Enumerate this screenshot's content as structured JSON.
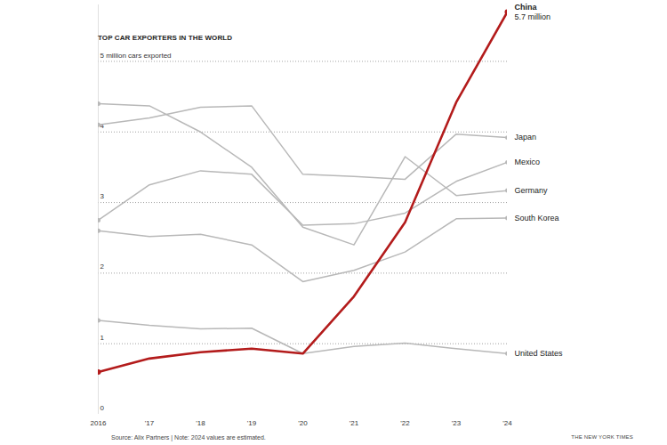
{
  "chart_data": {
    "type": "line",
    "title": "TOP CAR EXPORTERS IN THE WORLD",
    "source": "Source: Alix Partners | Note: 2024 values are estimated.",
    "credit": "THE NEW YORK TIMES",
    "x": [
      2016,
      2017,
      2018,
      2019,
      2020,
      2021,
      2022,
      2023,
      2024
    ],
    "xlim": [
      2016,
      2024
    ],
    "xticks": [
      {
        "value": 2016,
        "label": "2016"
      },
      {
        "value": 2017,
        "label": "'17"
      },
      {
        "value": 2018,
        "label": "'18"
      },
      {
        "value": 2019,
        "label": "'19"
      },
      {
        "value": 2020,
        "label": "'20"
      },
      {
        "value": 2021,
        "label": "'21"
      },
      {
        "value": 2022,
        "label": "'22"
      },
      {
        "value": 2023,
        "label": "'23"
      },
      {
        "value": 2024,
        "label": "'24"
      }
    ],
    "ylim": [
      0,
      5.8
    ],
    "yticks": [
      0,
      1,
      2,
      3,
      4,
      {
        "value": 5,
        "label": "5 million cars exported"
      }
    ],
    "grid": true,
    "marker": "circle",
    "series": [
      {
        "name": "China",
        "color": "#b31b1b",
        "line_style": "thick",
        "values": [
          0.6,
          0.79,
          0.88,
          0.93,
          0.86,
          1.67,
          2.72,
          4.42,
          5.7
        ],
        "value_labels": [
          null,
          null,
          null,
          null,
          null,
          null,
          null,
          null,
          "5.7 million"
        ]
      },
      {
        "name": "Japan",
        "color": "#b8b8b8",
        "line_style": "solid",
        "values": [
          4.1,
          4.2,
          4.35,
          4.37,
          3.4,
          3.37,
          3.33,
          3.97,
          3.92
        ]
      },
      {
        "name": "Mexico",
        "color": "#b8b8b8",
        "line_style": "solid",
        "values": [
          2.75,
          3.25,
          3.45,
          3.4,
          2.68,
          2.7,
          2.85,
          3.3,
          3.57
        ]
      },
      {
        "name": "Germany",
        "color": "#b8b8b8",
        "line_style": "solid",
        "values": [
          4.4,
          4.37,
          4.0,
          3.5,
          2.65,
          2.4,
          3.65,
          3.1,
          3.17
        ]
      },
      {
        "name": "South Korea",
        "color": "#b8b8b8",
        "line_style": "solid",
        "values": [
          2.6,
          2.52,
          2.55,
          2.4,
          1.88,
          2.04,
          2.3,
          2.77,
          2.78
        ]
      },
      {
        "name": "United States",
        "color": "#b8b8b8",
        "line_style": "solid",
        "values": [
          1.33,
          1.26,
          1.21,
          1.22,
          0.86,
          0.96,
          1.01,
          0.93,
          0.86
        ]
      }
    ]
  }
}
